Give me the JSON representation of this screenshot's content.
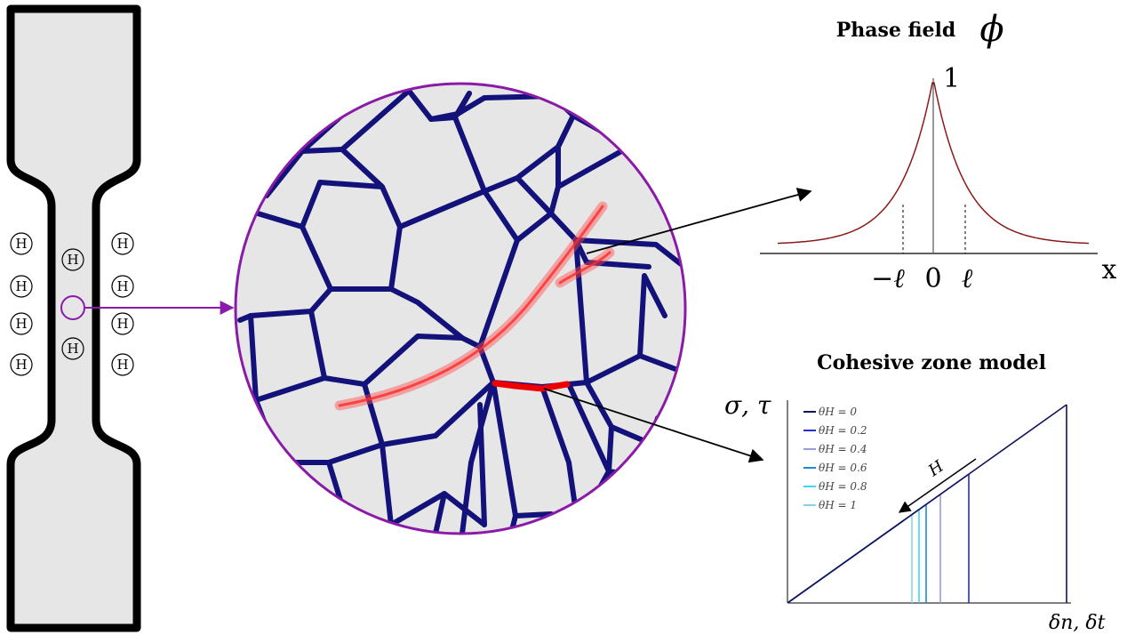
{
  "specimen": {
    "atom_label": "H",
    "atom_count": 10
  },
  "phase_field": {
    "title": "Phase field",
    "symbol": "ϕ",
    "peak_label": "1",
    "axis_label": "x",
    "ticks": [
      "−ℓ",
      "0",
      "ℓ"
    ],
    "curve_color": "#8b1a1a"
  },
  "cohesive": {
    "title": "Cohesive zone model",
    "y_label": "σ, τ",
    "x_label": "δn, δt",
    "arrow_label": "H",
    "legend": [
      {
        "label": "θH = 0",
        "color": "#14145a"
      },
      {
        "label": "θH = 0.2",
        "color": "#2430c8"
      },
      {
        "label": "θH = 0.4",
        "color": "#9a9ae0"
      },
      {
        "label": "θH = 0.6",
        "color": "#1e8ad8"
      },
      {
        "label": "θH = 0.8",
        "color": "#3ad8ee"
      },
      {
        "label": "θH = 1",
        "color": "#8ad0ec"
      }
    ]
  },
  "colors": {
    "grain_boundary": "#12127a",
    "grain_fill": "#e6e6e6",
    "crack_path": "#ff4d4d",
    "cohesive_crack": "#ee0000",
    "zoom_arrow": "#8a1aa8"
  }
}
